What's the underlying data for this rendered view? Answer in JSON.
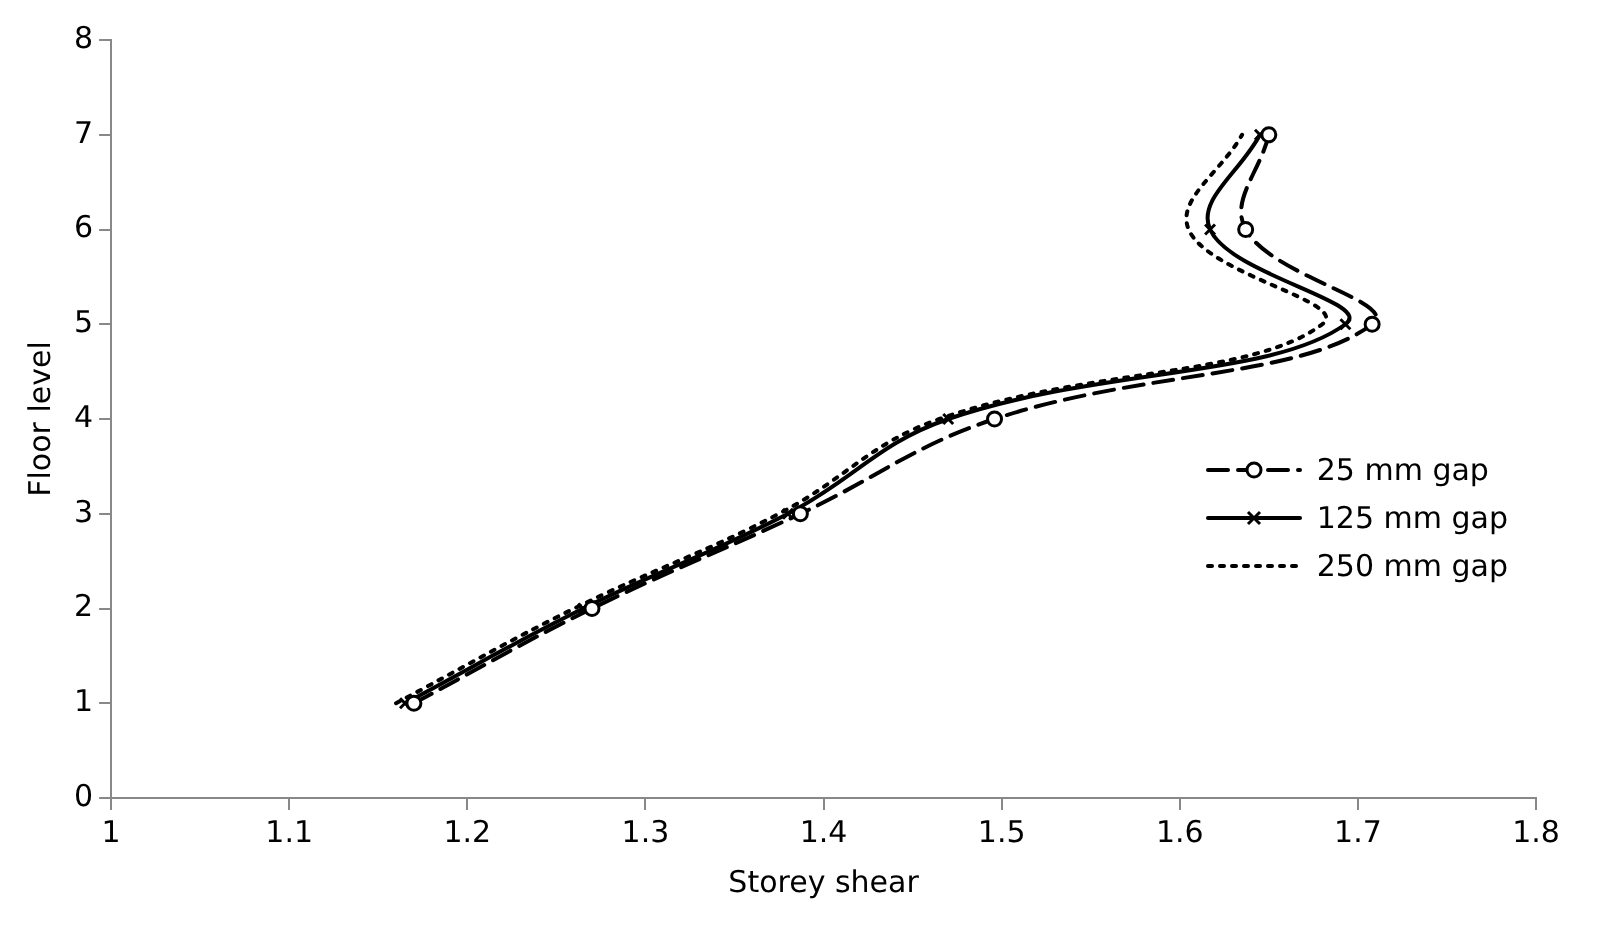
{
  "chart_data": {
    "type": "line",
    "xlabel": "Storey shear",
    "ylabel": "Floor level",
    "xlim": [
      1,
      1.8
    ],
    "xticks": [
      1,
      1.1,
      1.2,
      1.3,
      1.4,
      1.5,
      1.6,
      1.7,
      1.8
    ],
    "ylim": [
      0,
      8
    ],
    "yticks": [
      0,
      1,
      2,
      3,
      4,
      5,
      6,
      7,
      8
    ],
    "grid": false,
    "legend": "right",
    "series": [
      {
        "name": "25 mm gap",
        "color": "#000000",
        "line_style": "dashed",
        "marker": "circle",
        "x": [
          1.17,
          1.27,
          1.387,
          1.496,
          1.708,
          1.637,
          1.65
        ],
        "values": [
          1,
          2,
          3,
          4,
          5,
          6,
          7
        ]
      },
      {
        "name": "125 mm gap",
        "color": "#000000",
        "line_style": "solid",
        "marker": "cross",
        "x": [
          1.165,
          1.265,
          1.38,
          1.47,
          1.693,
          1.617,
          1.645
        ],
        "values": [
          1,
          2,
          3,
          4,
          5,
          6,
          7
        ]
      },
      {
        "name": "250 mm gap",
        "color": "#000000",
        "line_style": "dotted",
        "marker": "none",
        "x": [
          1.16,
          1.26,
          1.375,
          1.465,
          1.68,
          1.605,
          1.635
        ],
        "values": [
          1,
          2,
          3,
          4,
          5,
          6,
          7
        ]
      }
    ]
  }
}
